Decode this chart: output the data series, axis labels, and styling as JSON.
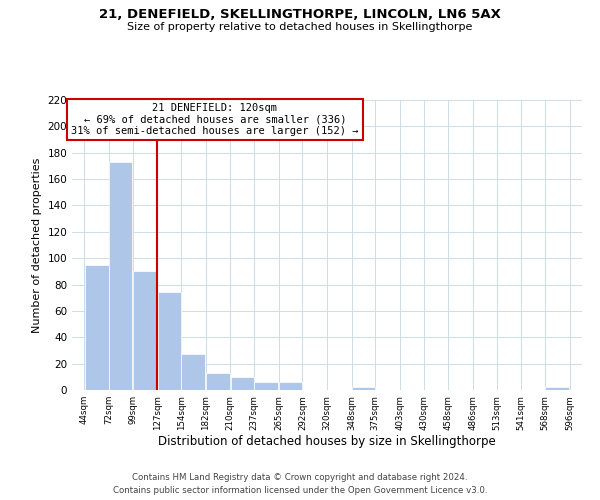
{
  "title": "21, DENEFIELD, SKELLINGTHORPE, LINCOLN, LN6 5AX",
  "subtitle": "Size of property relative to detached houses in Skellingthorpe",
  "xlabel": "Distribution of detached houses by size in Skellingthorpe",
  "ylabel": "Number of detached properties",
  "bar_edges": [
    44,
    72,
    99,
    127,
    154,
    182,
    210,
    237,
    265,
    292,
    320,
    348,
    375,
    403,
    430,
    458,
    486,
    513,
    541,
    568,
    596
  ],
  "bar_heights": [
    95,
    173,
    90,
    74,
    27,
    13,
    10,
    6,
    6,
    0,
    0,
    2,
    0,
    0,
    0,
    0,
    0,
    0,
    0,
    2
  ],
  "bar_color": "#aec6e8",
  "bar_edge_color": "#ffffff",
  "ref_line_x": 127,
  "ref_line_color": "#cc0000",
  "annotation_title": "21 DENEFIELD: 120sqm",
  "annotation_line1": "← 69% of detached houses are smaller (336)",
  "annotation_line2": "31% of semi-detached houses are larger (152) →",
  "annotation_box_color": "#ffffff",
  "annotation_box_edge_color": "#cc0000",
  "ylim": [
    0,
    220
  ],
  "yticks": [
    0,
    20,
    40,
    60,
    80,
    100,
    120,
    140,
    160,
    180,
    200,
    220
  ],
  "tick_labels": [
    "44sqm",
    "72sqm",
    "99sqm",
    "127sqm",
    "154sqm",
    "182sqm",
    "210sqm",
    "237sqm",
    "265sqm",
    "292sqm",
    "320sqm",
    "348sqm",
    "375sqm",
    "403sqm",
    "430sqm",
    "458sqm",
    "486sqm",
    "513sqm",
    "541sqm",
    "568sqm",
    "596sqm"
  ],
  "footer1": "Contains HM Land Registry data © Crown copyright and database right 2024.",
  "footer2": "Contains public sector information licensed under the Open Government Licence v3.0.",
  "background_color": "#ffffff",
  "grid_color": "#ccdde8"
}
